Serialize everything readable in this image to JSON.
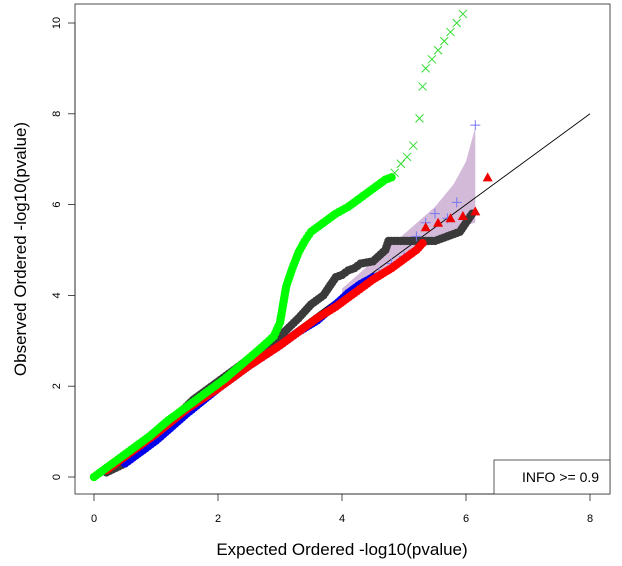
{
  "chart_data": {
    "type": "scatter",
    "title": "",
    "xlabel": "Expected Ordered -log10(pvalue)",
    "ylabel": "Observed Ordered -log10(pvalue)",
    "xlim": [
      0,
      8
    ],
    "ylim": [
      0,
      10
    ],
    "xticks": [
      "0",
      "2",
      "4",
      "6",
      "8"
    ],
    "yticks": [
      "0",
      "2",
      "4",
      "6",
      "8",
      "10"
    ],
    "grid": false,
    "legend": {
      "text": "INFO >= 0.9",
      "position": "bottom-right"
    },
    "reference_line": {
      "from": [
        0,
        0
      ],
      "to": [
        8,
        8
      ],
      "color": "#000000"
    },
    "confidence_band": {
      "color": "#c9a9cf",
      "upper": [
        [
          4.0,
          4.15
        ],
        [
          4.5,
          4.75
        ],
        [
          5.0,
          5.35
        ],
        [
          5.5,
          5.95
        ],
        [
          5.8,
          6.45
        ],
        [
          6.0,
          6.95
        ],
        [
          6.1,
          7.45
        ],
        [
          6.15,
          7.7
        ]
      ],
      "lower": [
        [
          4.0,
          3.9
        ],
        [
          4.5,
          4.35
        ],
        [
          5.0,
          4.8
        ],
        [
          5.5,
          5.2
        ],
        [
          6.0,
          5.55
        ],
        [
          6.15,
          5.6
        ]
      ]
    },
    "series": [
      {
        "marker": "dot",
        "color": "#3a3a3a",
        "points": [
          [
            0.2,
            0.1
          ],
          [
            0.5,
            0.3
          ],
          [
            0.8,
            0.6
          ],
          [
            1.0,
            0.9
          ],
          [
            1.3,
            1.3
          ],
          [
            1.6,
            1.7
          ],
          [
            2.0,
            2.1
          ],
          [
            2.5,
            2.6
          ],
          [
            3.0,
            3.1
          ],
          [
            3.3,
            3.5
          ],
          [
            3.5,
            3.8
          ],
          [
            3.7,
            4.0
          ],
          [
            3.9,
            4.4
          ],
          [
            4.0,
            4.45
          ],
          [
            4.1,
            4.55
          ],
          [
            4.2,
            4.6
          ],
          [
            4.3,
            4.7
          ],
          [
            4.5,
            4.75
          ],
          [
            4.7,
            5.0
          ],
          [
            4.75,
            5.2
          ],
          [
            4.9,
            5.2
          ],
          [
            5.1,
            5.2
          ],
          [
            5.3,
            5.2
          ],
          [
            5.5,
            5.2
          ],
          [
            5.6,
            5.25
          ],
          [
            5.7,
            5.3
          ],
          [
            5.9,
            5.4
          ],
          [
            6.1,
            5.8
          ]
        ]
      },
      {
        "marker": "dot",
        "color": "#0000ee",
        "points": [
          [
            0.5,
            0.3
          ],
          [
            1.0,
            0.8
          ],
          [
            1.5,
            1.4
          ],
          [
            2.0,
            1.95
          ],
          [
            2.5,
            2.45
          ],
          [
            3.0,
            2.9
          ],
          [
            3.3,
            3.2
          ],
          [
            3.6,
            3.45
          ],
          [
            3.9,
            3.8
          ],
          [
            4.1,
            4.05
          ],
          [
            4.3,
            4.25
          ],
          [
            4.5,
            4.4
          ]
        ]
      },
      {
        "marker": "plus",
        "color": "#7777ee",
        "points": [
          [
            4.6,
            4.5
          ],
          [
            4.8,
            4.7
          ],
          [
            5.0,
            4.85
          ],
          [
            5.2,
            5.3
          ],
          [
            5.35,
            5.6
          ],
          [
            5.5,
            5.8
          ],
          [
            5.7,
            5.7
          ],
          [
            5.85,
            6.05
          ],
          [
            6.15,
            7.75
          ]
        ]
      },
      {
        "marker": "dot",
        "color": "#ff0000",
        "points": [
          [
            0.2,
            0.15
          ],
          [
            0.5,
            0.45
          ],
          [
            1.0,
            0.95
          ],
          [
            1.5,
            1.5
          ],
          [
            2.0,
            1.95
          ],
          [
            2.5,
            2.45
          ],
          [
            3.0,
            2.9
          ],
          [
            3.3,
            3.2
          ],
          [
            3.6,
            3.5
          ],
          [
            3.9,
            3.75
          ],
          [
            4.2,
            4.05
          ],
          [
            4.5,
            4.35
          ],
          [
            4.8,
            4.6
          ],
          [
            5.0,
            4.8
          ],
          [
            5.2,
            5.0
          ],
          [
            5.3,
            5.15
          ]
        ]
      },
      {
        "marker": "triangle",
        "color": "#ee0000",
        "points": [
          [
            5.35,
            5.5
          ],
          [
            5.55,
            5.6
          ],
          [
            5.75,
            5.7
          ],
          [
            5.95,
            5.75
          ],
          [
            6.15,
            5.85
          ],
          [
            6.35,
            6.6
          ]
        ]
      },
      {
        "marker": "dot",
        "color": "#00ff00",
        "points": [
          [
            0.0,
            0.0
          ],
          [
            0.3,
            0.3
          ],
          [
            0.6,
            0.6
          ],
          [
            0.9,
            0.9
          ],
          [
            1.2,
            1.25
          ],
          [
            1.5,
            1.55
          ],
          [
            1.8,
            1.85
          ],
          [
            2.1,
            2.15
          ],
          [
            2.4,
            2.5
          ],
          [
            2.7,
            2.85
          ],
          [
            2.9,
            3.1
          ],
          [
            3.0,
            3.4
          ],
          [
            3.05,
            3.8
          ],
          [
            3.1,
            4.2
          ],
          [
            3.2,
            4.6
          ],
          [
            3.3,
            4.95
          ],
          [
            3.4,
            5.2
          ],
          [
            3.5,
            5.4
          ],
          [
            3.7,
            5.6
          ],
          [
            3.9,
            5.8
          ],
          [
            4.1,
            5.95
          ],
          [
            4.3,
            6.15
          ],
          [
            4.5,
            6.35
          ],
          [
            4.7,
            6.55
          ],
          [
            4.8,
            6.6
          ]
        ]
      },
      {
        "marker": "cross",
        "color": "#33dd33",
        "points": [
          [
            4.85,
            6.7
          ],
          [
            4.95,
            6.9
          ],
          [
            5.05,
            7.05
          ],
          [
            5.15,
            7.3
          ],
          [
            5.25,
            7.9
          ],
          [
            5.3,
            8.6
          ],
          [
            5.35,
            9.0
          ],
          [
            5.45,
            9.2
          ],
          [
            5.55,
            9.4
          ],
          [
            5.65,
            9.6
          ],
          [
            5.75,
            9.8
          ],
          [
            5.85,
            10.0
          ],
          [
            5.95,
            10.2
          ]
        ]
      }
    ]
  }
}
